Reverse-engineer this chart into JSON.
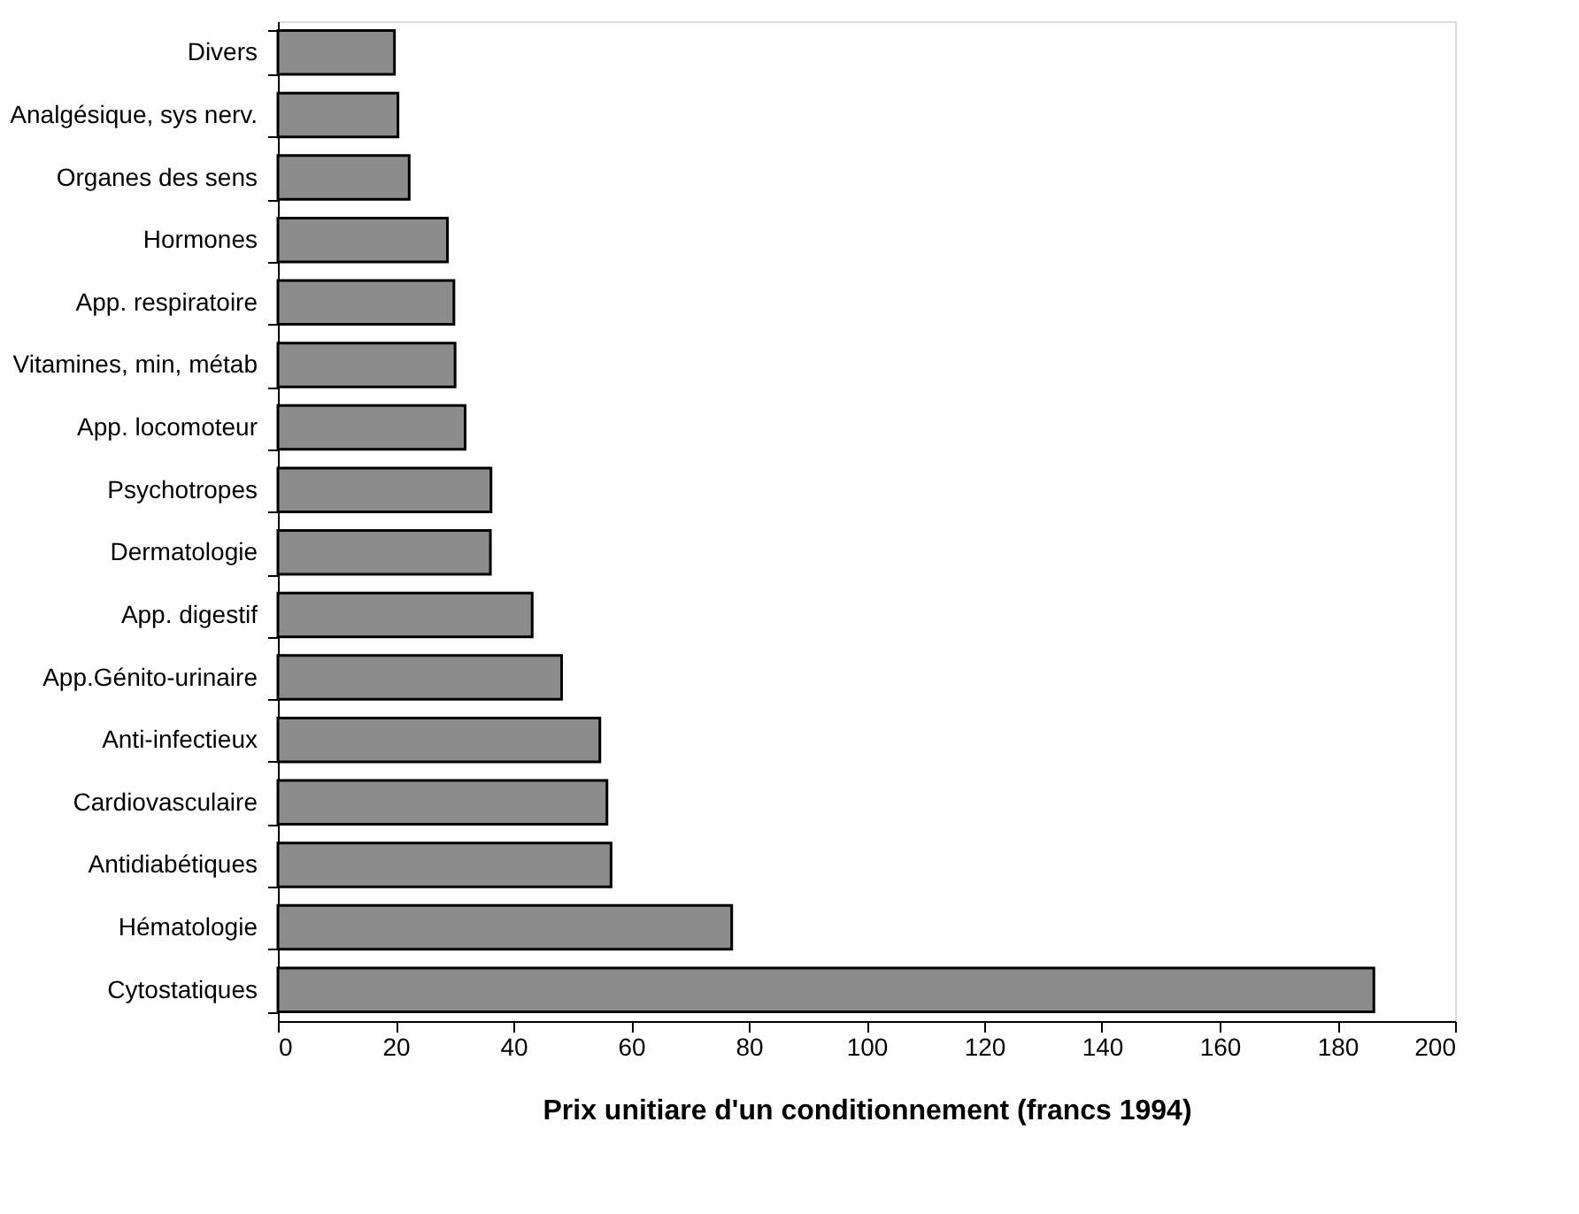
{
  "chart_data": {
    "type": "bar",
    "orientation": "horizontal",
    "xlabel": "Prix unitiare d'un conditionnement (francs 1994)",
    "categories": [
      "Divers",
      "Analgésique, sys nerv.",
      "Organes des sens",
      "Hormones",
      "App. respiratoire",
      "Vitamines, min, métab",
      "App. locomoteur",
      "Psychotropes",
      "Dermatologie",
      "App. digestif",
      "App.Génito-urinaire",
      "Anti-infectieux",
      "Cardiovasculaire",
      "Antidiabétiques",
      "Hématologie",
      "Cytostatiques"
    ],
    "values": [
      19.8,
      20.4,
      22.3,
      28.8,
      29.9,
      30.1,
      31.8,
      36.2,
      36.1,
      43.2,
      48.2,
      54.7,
      55.9,
      56.6,
      77.1,
      186.2
    ],
    "color": "#8c8c8c",
    "xlim": [
      0,
      200
    ],
    "xticks": [
      0,
      20,
      40,
      60,
      80,
      100,
      120,
      140,
      160,
      180,
      200
    ],
    "grid": false
  }
}
